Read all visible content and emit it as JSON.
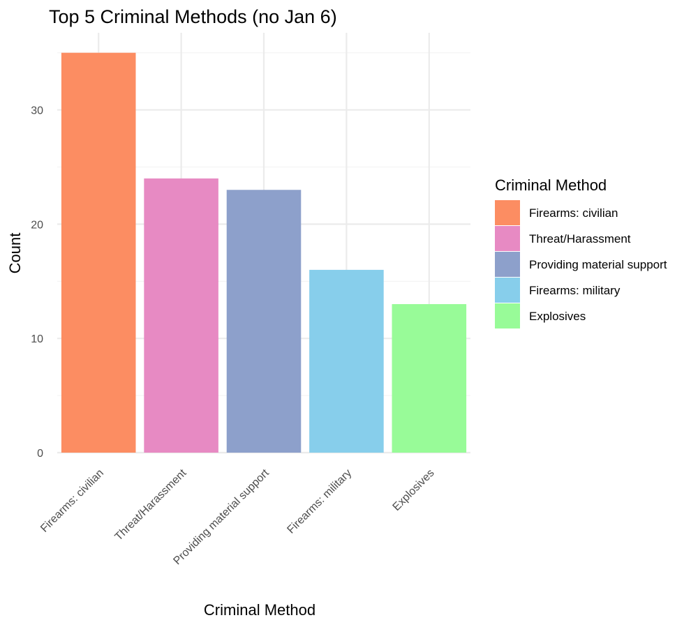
{
  "chart_data": {
    "type": "bar",
    "title": "Top 5 Criminal Methods (no Jan 6)",
    "xlabel": "Criminal Method",
    "ylabel": "Count",
    "categories": [
      "Firearms: civilian",
      "Threat/Harassment",
      "Providing material support",
      "Firearms: military",
      "Explosives"
    ],
    "values": [
      35,
      24,
      23,
      16,
      13
    ],
    "colors": [
      "#fc8d62",
      "#e78ac3",
      "#8da0cb",
      "#87ceeb",
      "#98fb98"
    ],
    "ylim": [
      0,
      36.75
    ],
    "y_ticks": [
      0,
      10,
      20,
      30
    ],
    "y_tick_labels": [
      "0",
      "10",
      "20",
      "30"
    ],
    "grid": true,
    "legend": {
      "title": "Criminal Method",
      "position": "right",
      "entries": [
        "Firearms: civilian",
        "Threat/Harassment",
        "Providing material support",
        "Firearms: military",
        "Explosives"
      ]
    }
  }
}
